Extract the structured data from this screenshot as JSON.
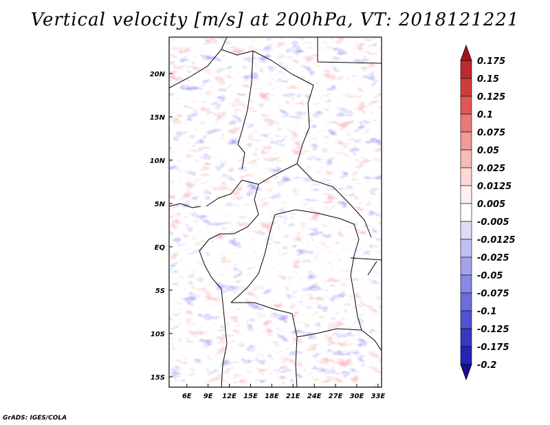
{
  "title": "Vertical velocity [m/s] at 200hPa, VT: 2018121221",
  "credit": "GrADS: IGES/COLA",
  "map": {
    "lon_range": [
      3.5,
      33.5
    ],
    "lat_range": [
      -16.2,
      24.2
    ],
    "lat_ticks": [
      {
        "value": 20,
        "label": "20N"
      },
      {
        "value": 15,
        "label": "15N"
      },
      {
        "value": 10,
        "label": "10N"
      },
      {
        "value": 5,
        "label": "5N"
      },
      {
        "value": 0,
        "label": "EQ"
      },
      {
        "value": -5,
        "label": "5S"
      },
      {
        "value": -10,
        "label": "10S"
      },
      {
        "value": -15,
        "label": "15S"
      }
    ],
    "lon_ticks": [
      {
        "value": 6,
        "label": "6E"
      },
      {
        "value": 9,
        "label": "9E"
      },
      {
        "value": 12,
        "label": "12E"
      },
      {
        "value": 15,
        "label": "15E"
      },
      {
        "value": 18,
        "label": "18E"
      },
      {
        "value": 21,
        "label": "21E"
      },
      {
        "value": 24,
        "label": "24E"
      },
      {
        "value": 27,
        "label": "27E"
      },
      {
        "value": 30,
        "label": "30E"
      },
      {
        "value": 33,
        "label": "33E"
      }
    ]
  },
  "colorbar": {
    "labels": [
      "0.175",
      "0.15",
      "0.125",
      "0.1",
      "0.075",
      "0.05",
      "0.025",
      "0.0125",
      "0.005",
      "-0.005",
      "-0.0125",
      "-0.025",
      "-0.05",
      "-0.075",
      "-0.1",
      "-0.125",
      "-0.175",
      "-0.2"
    ],
    "colors": [
      "#a0151f",
      "#bb2a30",
      "#d03c3c",
      "#e15656",
      "#ea7a78",
      "#f29a96",
      "#f7bab7",
      "#fcd9d7",
      "#fff0ef",
      "#ffffff",
      "#dcdcf7",
      "#c0c0f2",
      "#a3a3ec",
      "#8888e6",
      "#6d6ddd",
      "#5252d2",
      "#3838c6",
      "#2323b6",
      "#1a0f93"
    ]
  }
}
